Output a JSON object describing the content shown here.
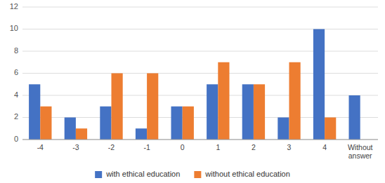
{
  "chart_data": {
    "type": "bar",
    "categories": [
      "-4",
      "-3",
      "-2",
      "-1",
      "0",
      "1",
      "2",
      "3",
      "4",
      "Without\nanswer"
    ],
    "series": [
      {
        "name": "with ethical education",
        "color": "#4472C4",
        "values": [
          5,
          2,
          3,
          1,
          3,
          5,
          5,
          2,
          10,
          4
        ]
      },
      {
        "name": "without ethical education",
        "color": "#ED7D31",
        "values": [
          3,
          1,
          6,
          6,
          3,
          7,
          5,
          7,
          2,
          0
        ]
      }
    ],
    "ylim": [
      0,
      12
    ],
    "yticks": [
      0,
      2,
      4,
      6,
      8,
      10,
      12
    ],
    "grid": true,
    "legend": "bottom"
  }
}
